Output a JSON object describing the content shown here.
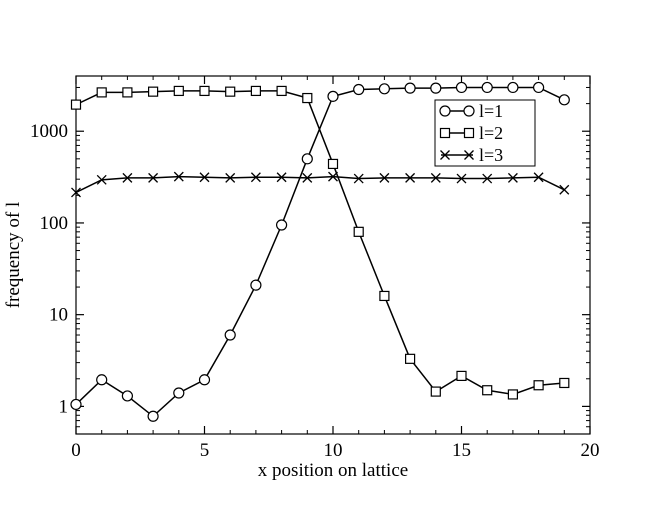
{
  "chart_data": {
    "type": "line",
    "xlabel": "x position on lattice",
    "ylabel": "frequency of l",
    "xlim": [
      0,
      20
    ],
    "ylim": [
      0.5,
      4000
    ],
    "yscale": "log",
    "x_ticks": [
      0,
      5,
      10,
      15,
      20
    ],
    "x_tick_labels": [
      "0",
      "5",
      "10",
      "15",
      "20"
    ],
    "y_ticks": [
      1,
      10,
      100,
      1000
    ],
    "y_tick_labels": [
      "1",
      "10",
      "100",
      "1000"
    ],
    "grid": false,
    "legend_position": "top-right",
    "series": [
      {
        "name": "l=1",
        "marker": "circle",
        "color": "#000000",
        "x": [
          0,
          1,
          2,
          3,
          4,
          5,
          6,
          7,
          8,
          9,
          10,
          11,
          12,
          13,
          14,
          15,
          16,
          17,
          18,
          19
        ],
        "values": [
          1.05,
          1.95,
          1.3,
          0.78,
          1.4,
          1.95,
          6.0,
          21,
          95,
          500,
          2400,
          2850,
          2900,
          2950,
          2950,
          3000,
          3000,
          3000,
          3000,
          2200
        ]
      },
      {
        "name": "l=2",
        "marker": "square",
        "color": "#000000",
        "x": [
          0,
          1,
          2,
          3,
          4,
          5,
          6,
          7,
          8,
          9,
          10,
          11,
          12,
          13,
          14,
          15,
          16,
          17,
          18,
          19
        ],
        "values": [
          1950,
          2650,
          2650,
          2700,
          2750,
          2750,
          2700,
          2750,
          2750,
          2300,
          440,
          80,
          16,
          3.3,
          1.45,
          2.15,
          1.5,
          1.35,
          1.7,
          1.8
        ]
      },
      {
        "name": "l=3",
        "marker": "x",
        "color": "#000000",
        "x": [
          0,
          1,
          2,
          3,
          4,
          5,
          6,
          7,
          8,
          9,
          10,
          11,
          12,
          13,
          14,
          15,
          16,
          17,
          18,
          19
        ],
        "values": [
          215,
          295,
          310,
          310,
          320,
          315,
          310,
          315,
          315,
          310,
          320,
          305,
          310,
          310,
          310,
          305,
          305,
          310,
          315,
          230
        ]
      }
    ]
  }
}
